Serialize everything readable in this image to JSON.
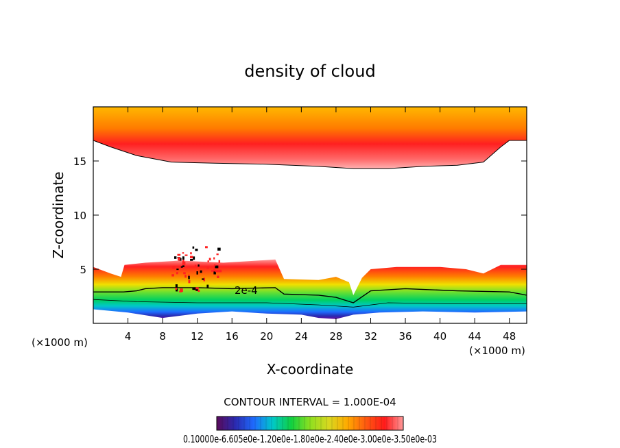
{
  "chart_data": {
    "type": "heatmap",
    "title": "density of cloud",
    "xlabel": "X-coordinate",
    "ylabel": "Z-coordinate",
    "x_unit": "(×1000 m)",
    "x_unit_right": "(×1000 m)",
    "xlim": [
      0,
      50
    ],
    "ylim": [
      0,
      20
    ],
    "x_ticks": [
      "4",
      "8",
      "12",
      "16",
      "20",
      "24",
      "28",
      "32",
      "36",
      "40",
      "44",
      "48"
    ],
    "y_ticks": [
      "5",
      "10",
      "15"
    ],
    "contour_label": "2e-4",
    "contour_interval_text": "CONTOUR INTERVAL = 1.000E-04",
    "colorbar_labels_text": "0.10000e-6.605e0e-1.20e0e-1.80e0e-2.40e0e-3.00e0e-3.50e0e-03",
    "colorbar_stops": [
      "#5a0a5a",
      "#2a2ab0",
      "#1e6cff",
      "#00c8c8",
      "#10d040",
      "#8ee020",
      "#d8d820",
      "#ffaa00",
      "#ff5a10",
      "#ff1a1a",
      "#ff9a9a"
    ],
    "upper_layer": {
      "top_z": 20,
      "boundary": [
        [
          0,
          16.9
        ],
        [
          2,
          16.3
        ],
        [
          5,
          15.5
        ],
        [
          9,
          14.9
        ],
        [
          14,
          14.8
        ],
        [
          20,
          14.7
        ],
        [
          26,
          14.5
        ],
        [
          30,
          14.3
        ],
        [
          34,
          14.3
        ],
        [
          38,
          14.5
        ],
        [
          42,
          14.6
        ],
        [
          45,
          14.9
        ],
        [
          47,
          16.3
        ],
        [
          48,
          16.9
        ],
        [
          50,
          16.9
        ]
      ]
    },
    "lower_layer": {
      "top": [
        [
          0,
          5.2
        ],
        [
          2,
          4.6
        ],
        [
          3.2,
          4.3
        ],
        [
          3.6,
          5.4
        ],
        [
          6,
          5.6
        ],
        [
          10,
          5.8
        ],
        [
          15,
          5.6
        ],
        [
          19,
          5.8
        ],
        [
          21,
          5.9
        ],
        [
          22,
          4.1
        ],
        [
          26,
          4.0
        ],
        [
          28,
          4.3
        ],
        [
          29.5,
          3.8
        ],
        [
          30,
          2.6
        ],
        [
          31,
          4.2
        ],
        [
          32,
          5.0
        ],
        [
          35,
          5.2
        ],
        [
          40,
          5.2
        ],
        [
          43,
          5.0
        ],
        [
          45,
          4.6
        ],
        [
          47,
          5.4
        ],
        [
          50,
          5.4
        ]
      ],
      "bottom": [
        [
          0,
          1.3
        ],
        [
          4,
          1.0
        ],
        [
          8,
          0.5
        ],
        [
          12,
          0.9
        ],
        [
          16,
          1.1
        ],
        [
          20,
          0.9
        ],
        [
          24,
          0.8
        ],
        [
          26,
          0.5
        ],
        [
          28,
          0.4
        ],
        [
          30,
          0.8
        ],
        [
          33,
          1.0
        ],
        [
          38,
          1.1
        ],
        [
          44,
          1.0
        ],
        [
          50,
          1.1
        ]
      ],
      "contour_2e4": [
        [
          0,
          2.9
        ],
        [
          3.5,
          2.9
        ],
        [
          5,
          3.0
        ],
        [
          6,
          3.2
        ],
        [
          8,
          3.3
        ],
        [
          12,
          3.3
        ],
        [
          16,
          3.2
        ],
        [
          21,
          3.3
        ],
        [
          22,
          2.7
        ],
        [
          26,
          2.6
        ],
        [
          28,
          2.4
        ],
        [
          30,
          1.9
        ],
        [
          32,
          3.0
        ],
        [
          36,
          3.2
        ],
        [
          42,
          3.0
        ],
        [
          48,
          2.9
        ],
        [
          50,
          2.6
        ]
      ],
      "inner_contour": [
        [
          0,
          2.2
        ],
        [
          5,
          2.0
        ],
        [
          12,
          1.9
        ],
        [
          20,
          1.9
        ],
        [
          26,
          1.7
        ],
        [
          30,
          1.5
        ],
        [
          34,
          1.9
        ],
        [
          42,
          1.8
        ],
        [
          50,
          1.8
        ]
      ]
    }
  }
}
